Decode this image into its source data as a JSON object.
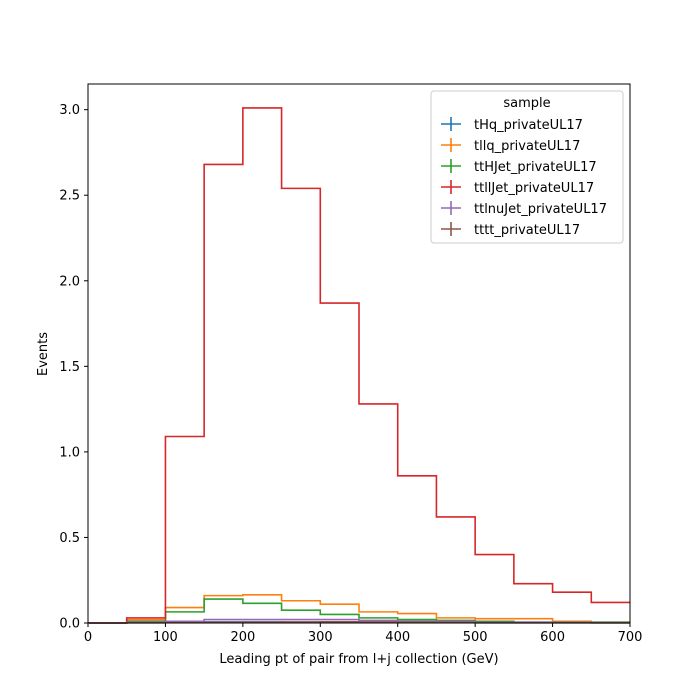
{
  "chart_data": {
    "type": "line",
    "style": "step-histogram",
    "xlabel": "Leading pt of pair from l+j collection (GeV)",
    "ylabel": "Events",
    "xlim": [
      0,
      700
    ],
    "ylim": [
      0,
      3.15
    ],
    "x_ticks": [
      "0",
      "100",
      "200",
      "300",
      "400",
      "500",
      "600",
      "700"
    ],
    "y_ticks": [
      "0.0",
      "0.5",
      "1.0",
      "1.5",
      "2.0",
      "2.5",
      "3.0"
    ],
    "bin_edges": [
      0,
      50,
      100,
      150,
      200,
      250,
      300,
      350,
      400,
      450,
      500,
      550,
      600,
      650,
      700
    ],
    "grid": false,
    "legend": {
      "title": "sample",
      "position": "top-right"
    },
    "series": [
      {
        "name": "tHq_privateUL17",
        "color": "#1f77b4",
        "values": [
          0,
          0.002,
          0.004,
          0.006,
          0.006,
          0.005,
          0.004,
          0.003,
          0.002,
          0.002,
          0.001,
          0.001,
          0.001,
          0.001
        ]
      },
      {
        "name": "tllq_privateUL17",
        "color": "#ff7f0e",
        "values": [
          0,
          0.02,
          0.09,
          0.16,
          0.165,
          0.13,
          0.11,
          0.065,
          0.055,
          0.03,
          0.025,
          0.025,
          0.01,
          0.005
        ]
      },
      {
        "name": "ttHJet_privateUL17",
        "color": "#2ca02c",
        "values": [
          0,
          0.01,
          0.065,
          0.14,
          0.115,
          0.075,
          0.05,
          0.03,
          0.02,
          0.015,
          0.01,
          0.005,
          0.005,
          0.005
        ]
      },
      {
        "name": "ttllJet_privateUL17",
        "color": "#d62728",
        "values": [
          0,
          0.03,
          1.09,
          2.68,
          3.01,
          2.54,
          1.87,
          1.28,
          0.86,
          0.62,
          0.4,
          0.23,
          0.18,
          0.12
        ]
      },
      {
        "name": "ttlnuJet_privateUL17",
        "color": "#9467bd",
        "values": [
          0,
          0.005,
          0.01,
          0.02,
          0.02,
          0.02,
          0.02,
          0.015,
          0.01,
          0.01,
          0.005,
          0.005,
          0.003,
          0.002
        ]
      },
      {
        "name": "tttt_privateUL17",
        "color": "#8c564b",
        "values": [
          0,
          0.001,
          0.002,
          0.004,
          0.005,
          0.006,
          0.007,
          0.006,
          0.005,
          0.004,
          0.003,
          0.002,
          0.002,
          0.001
        ]
      }
    ]
  }
}
